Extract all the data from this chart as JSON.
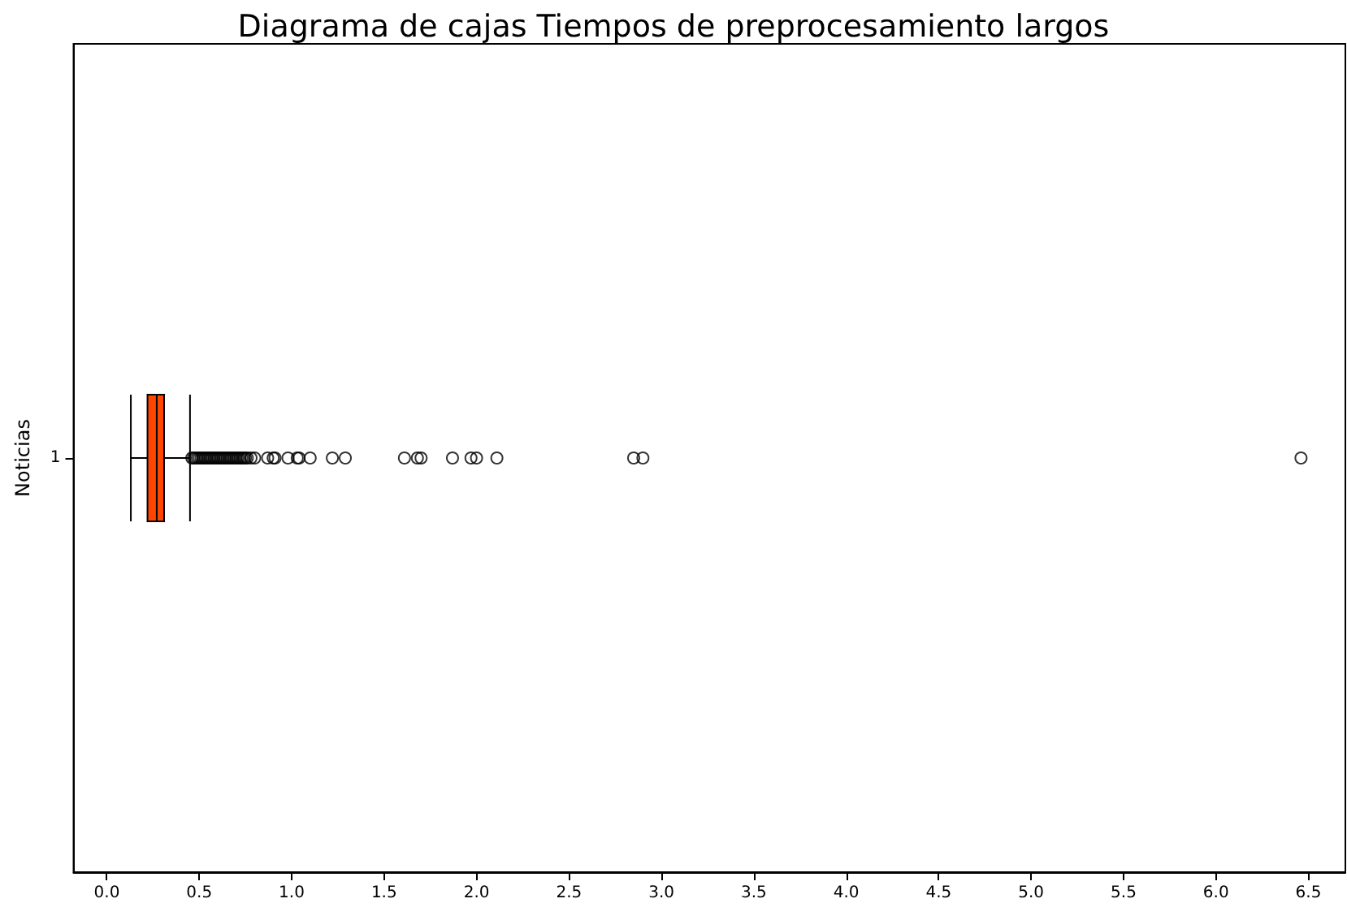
{
  "chart_data": {
    "type": "box",
    "title": "Diagrama de cajas Tiempos de preprocesamiento largos",
    "ylabel": "Noticias",
    "orientation": "horizontal",
    "categories": [
      "1"
    ],
    "series": [
      {
        "color": "#ff4500",
        "boxes": [
          {
            "low": 0.13,
            "q1": 0.22,
            "median": 0.27,
            "q3": 0.31,
            "high": 0.45,
            "outliers": [
              0.46,
              0.47,
              0.48,
              0.49,
              0.5,
              0.51,
              0.52,
              0.53,
              0.54,
              0.55,
              0.56,
              0.57,
              0.58,
              0.59,
              0.6,
              0.61,
              0.62,
              0.63,
              0.64,
              0.65,
              0.66,
              0.67,
              0.68,
              0.69,
              0.7,
              0.71,
              0.72,
              0.73,
              0.74,
              0.75,
              0.76,
              0.78,
              0.8,
              0.87,
              0.9,
              0.91,
              0.98,
              1.03,
              1.04,
              1.1,
              1.22,
              1.29,
              1.61,
              1.68,
              1.7,
              1.87,
              1.97,
              2.0,
              2.11,
              2.85,
              2.9,
              6.46
            ]
          }
        ]
      }
    ],
    "xlim": [
      -0.18,
      6.7
    ],
    "xticks": [
      {
        "value": 0,
        "label": "0.0"
      },
      {
        "value": 0.5,
        "label": "0.5"
      },
      {
        "value": 1,
        "label": "1.0"
      },
      {
        "value": 1.5,
        "label": "1.5"
      },
      {
        "value": 2,
        "label": "2.0"
      },
      {
        "value": 2.5,
        "label": "2.5"
      },
      {
        "value": 3,
        "label": "3.0"
      },
      {
        "value": 3.5,
        "label": "3.5"
      },
      {
        "value": 4,
        "label": "4.0"
      },
      {
        "value": 4.5,
        "label": "4.5"
      },
      {
        "value": 5,
        "label": "5.0"
      },
      {
        "value": 5.5,
        "label": "5.5"
      },
      {
        "value": 6,
        "label": "6.0"
      },
      {
        "value": 6.5,
        "label": "6.5"
      }
    ],
    "marker": "circle"
  }
}
